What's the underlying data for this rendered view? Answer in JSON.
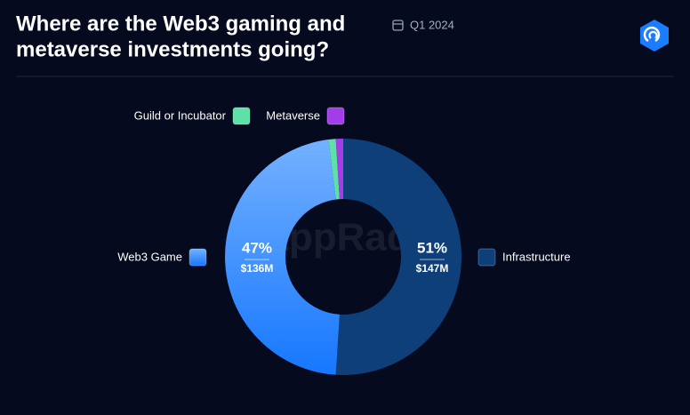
{
  "chart_data": {
    "type": "donut",
    "title": [
      "Where are the Web3 gaming and",
      "metaverse investments going?"
    ],
    "subtitle": "Q1 2024",
    "watermark": "DappRadar",
    "categories": [
      "Infrastructure",
      "Web3 Game",
      "Guild or Incubator",
      "Metaverse"
    ],
    "values": [
      51,
      47,
      1,
      1
    ],
    "value_labels": [
      "51%",
      "47%",
      null,
      null
    ],
    "amount_labels": [
      "$147M",
      "$136M",
      null,
      null
    ],
    "colors": [
      "#0f3f78",
      "#2a86ff",
      "#5fe0a8",
      "#a23de8"
    ]
  }
}
